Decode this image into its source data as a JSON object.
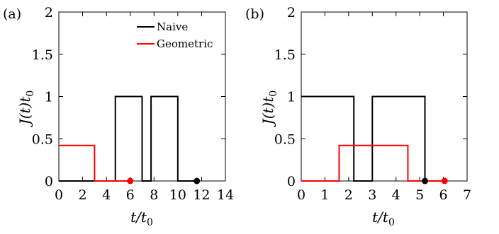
{
  "chart_data": [
    {
      "type": "line",
      "panel_label": "(a)",
      "xlabel": "t/t0",
      "ylabel": "J(t)t0",
      "xlim": [
        0,
        14
      ],
      "ylim": [
        0,
        2
      ],
      "xticks": [
        0,
        2,
        4,
        6,
        8,
        10,
        12,
        14
      ],
      "yticks": [
        0,
        0.5,
        1,
        1.5,
        2
      ],
      "xtick_labels": [
        "0",
        "2",
        "4",
        "6",
        "8",
        "10",
        "12",
        "14"
      ],
      "ytick_labels": [
        "0",
        "0.5",
        "1",
        "1.5",
        "2"
      ],
      "legend": {
        "position": "top-right",
        "entries": [
          "Naive",
          "Geometric"
        ]
      },
      "series": [
        {
          "name": "Naive",
          "color": "#000000",
          "x": [
            0,
            4.75,
            4.75,
            7.0,
            7.0,
            7.75,
            7.75,
            10.0,
            10.0,
            11.6
          ],
          "y": [
            0,
            0,
            1,
            1,
            0,
            0,
            1,
            1,
            0,
            0
          ],
          "endpoint": [
            11.6,
            0
          ]
        },
        {
          "name": "Geometric",
          "color": "#ff0000",
          "x": [
            0,
            3.0,
            3.0,
            6.0
          ],
          "y": [
            0.42,
            0.42,
            0,
            0
          ],
          "endpoint": [
            6.0,
            0
          ]
        }
      ]
    },
    {
      "type": "line",
      "panel_label": "(b)",
      "xlabel": "t/t0",
      "ylabel": "J(t)t0",
      "xlim": [
        0,
        7
      ],
      "ylim": [
        0,
        2
      ],
      "xticks": [
        0,
        1,
        2,
        3,
        4,
        5,
        6,
        7
      ],
      "yticks": [
        0,
        0.5,
        1,
        1.5,
        2
      ],
      "xtick_labels": [
        "0",
        "1",
        "2",
        "3",
        "4",
        "5",
        "6",
        "7"
      ],
      "ytick_labels": [
        "0",
        "0.5",
        "1",
        "1.5",
        "2"
      ],
      "series": [
        {
          "name": "Naive",
          "color": "#000000",
          "x": [
            0,
            2.22,
            2.22,
            3.0,
            3.0,
            5.22,
            5.22
          ],
          "y": [
            1,
            1,
            0,
            0,
            1,
            1,
            0
          ],
          "endpoint": [
            5.22,
            0
          ]
        },
        {
          "name": "Geometric",
          "color": "#ff0000",
          "x": [
            0,
            1.6,
            1.6,
            4.5,
            4.5,
            6.05
          ],
          "y": [
            0,
            0,
            0.42,
            0.42,
            0,
            0
          ],
          "endpoint": [
            6.05,
            0
          ]
        }
      ]
    }
  ]
}
